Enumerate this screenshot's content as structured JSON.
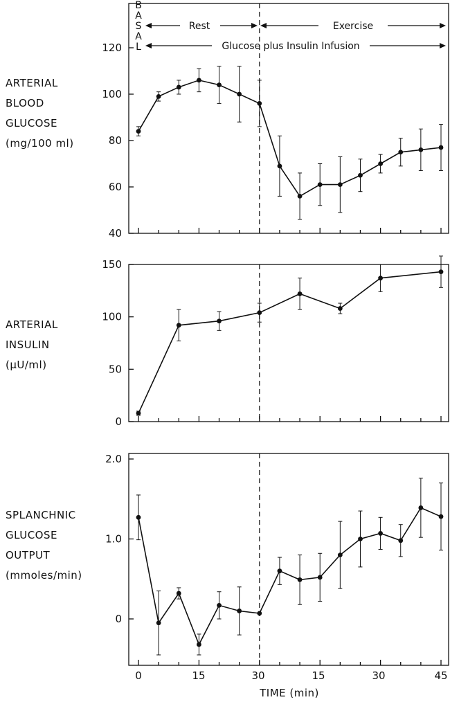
{
  "annotations": {
    "basal": [
      "B",
      "A",
      "S",
      "A",
      "L"
    ],
    "rest": "Rest",
    "exercise": "Exercise",
    "infusion": "Glucose plus Insulin Infusion"
  },
  "xaxis": {
    "label": "TIME (min)",
    "tick_labels": [
      "0",
      "15",
      "30",
      "15",
      "30",
      "45"
    ]
  },
  "chart_data": [
    {
      "type": "line",
      "name_lines": [
        "ARTERIAL",
        "BLOOD",
        "GLUCOSE",
        "(mg/100 ml)"
      ],
      "x": [
        0,
        5,
        10,
        15,
        20,
        25,
        30,
        35,
        40,
        45,
        50,
        55,
        60,
        65,
        70,
        75
      ],
      "y": [
        84,
        99,
        103,
        106,
        104,
        100,
        96,
        69,
        56,
        61,
        61,
        65,
        70,
        75,
        76,
        77
      ],
      "err": [
        2,
        2,
        3,
        5,
        8,
        12,
        10,
        13,
        10,
        9,
        12,
        7,
        4,
        6,
        9,
        10
      ],
      "ylim": [
        40,
        130
      ],
      "yticks": [
        40,
        60,
        80,
        100,
        120
      ],
      "ytick_labels": [
        "40",
        "60",
        "80",
        "100",
        "120"
      ]
    },
    {
      "type": "line",
      "name_lines": [
        "ARTERIAL",
        "INSULIN",
        "(µU/ml)"
      ],
      "x": [
        0,
        10,
        20,
        30,
        40,
        50,
        60,
        75
      ],
      "y": [
        8,
        92,
        96,
        104,
        122,
        108,
        137,
        143
      ],
      "err": [
        2,
        15,
        9,
        9,
        15,
        5,
        13,
        15
      ],
      "ylim": [
        0,
        150
      ],
      "yticks": [
        0,
        50,
        100,
        150
      ],
      "ytick_labels": [
        "0",
        "50",
        "100",
        "150"
      ]
    },
    {
      "type": "line",
      "name_lines": [
        "SPLANCHNIC",
        "GLUCOSE",
        "OUTPUT",
        "(mmoles/min)"
      ],
      "x": [
        0,
        5,
        10,
        15,
        20,
        25,
        30,
        35,
        40,
        45,
        50,
        55,
        60,
        65,
        70,
        75
      ],
      "y": [
        1.27,
        -0.05,
        0.32,
        -0.32,
        0.17,
        0.1,
        0.07,
        0.6,
        0.49,
        0.52,
        0.8,
        1.0,
        1.07,
        0.98,
        1.39,
        1.28
      ],
      "err": [
        0.28,
        0.4,
        0.07,
        0.13,
        0.17,
        0.3,
        0.0,
        0.17,
        0.31,
        0.3,
        0.42,
        0.35,
        0.2,
        0.2,
        0.37,
        0.42
      ],
      "ylim": [
        -0.5,
        2.0
      ],
      "yticks": [
        0,
        1.0,
        2.0
      ],
      "ytick_labels": [
        "0",
        "1.0",
        "2.0"
      ]
    }
  ]
}
